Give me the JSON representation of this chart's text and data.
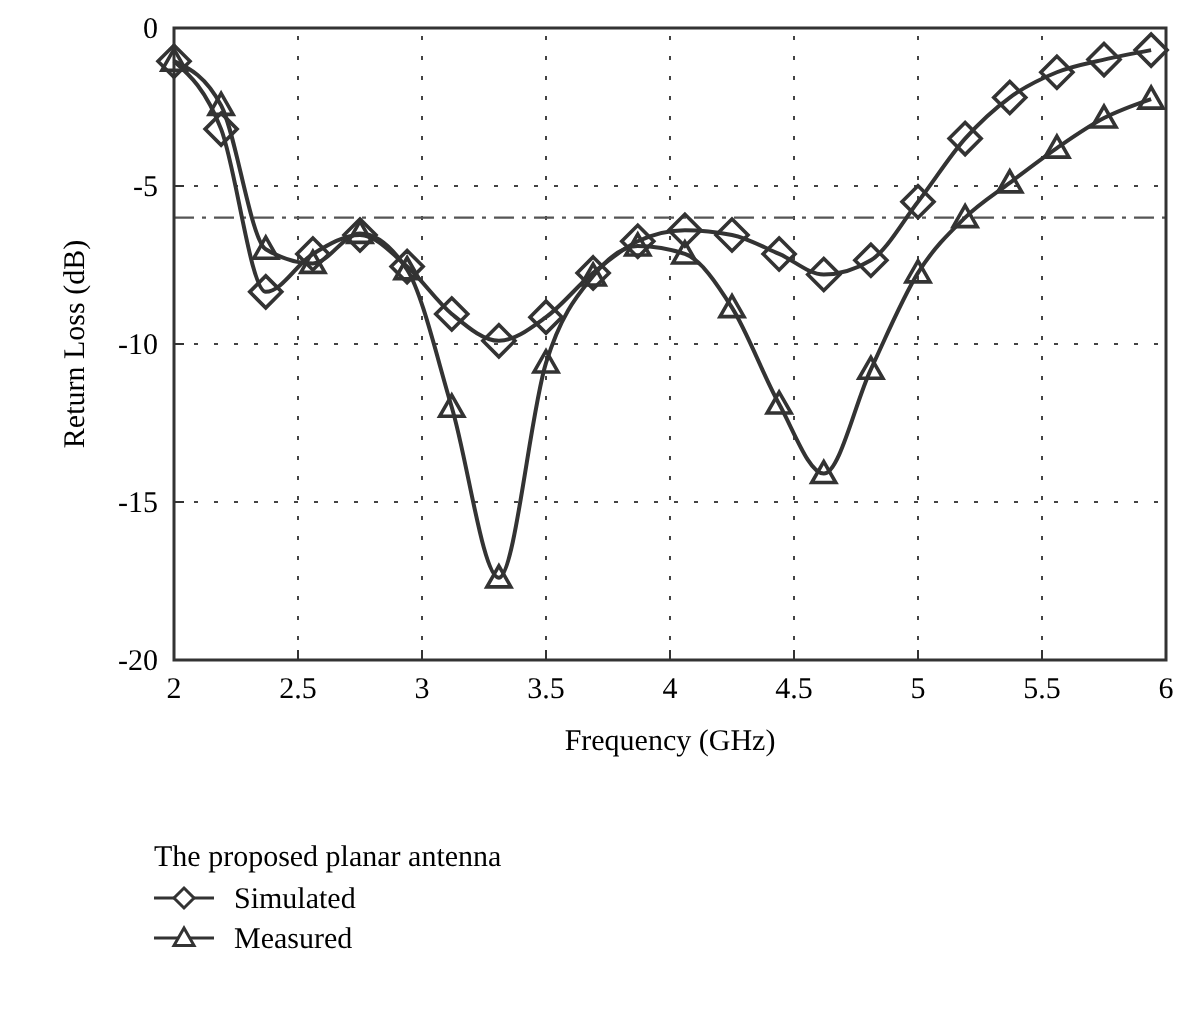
{
  "chart_data": {
    "type": "line",
    "xlabel": "Frequency (GHz)",
    "ylabel": "Return Loss (dB)",
    "legend_title": "The proposed planar antenna",
    "legend": "bottom left",
    "grid": true,
    "line_style": "solid",
    "xlim": [
      2,
      6
    ],
    "xticks": [
      2,
      2.5,
      3,
      3.5,
      4,
      4.5,
      5,
      5.5,
      6
    ],
    "ylim": [
      -20,
      0
    ],
    "yticks": [
      -20,
      -15,
      -10,
      -5,
      0
    ],
    "x": [
      2,
      2.19,
      2.37,
      2.56,
      2.75,
      2.94,
      3.12,
      3.31,
      3.5,
      3.69,
      3.87,
      4.06,
      4.25,
      4.44,
      4.62,
      4.81,
      5,
      5.19,
      5.37,
      5.56,
      5.75,
      5.94
    ],
    "series": [
      {
        "name": "Simulated",
        "color": "#333333",
        "marker": "diamond",
        "values": [
          -1.05,
          -3.2,
          -8.35,
          -7.15,
          -6.55,
          -7.55,
          -9.05,
          -9.9,
          -9.15,
          -7.75,
          -6.75,
          -6.4,
          -6.55,
          -7.15,
          -7.8,
          -7.35,
          -5.5,
          -3.5,
          -2.2,
          -1.4,
          -1.0,
          -0.7
        ]
      },
      {
        "name": "Measured",
        "color": "#333333",
        "marker": "triangle",
        "values": [
          -1.05,
          -2.45,
          -7.0,
          -7.45,
          -6.5,
          -7.65,
          -12.0,
          -17.4,
          -10.6,
          -7.85,
          -6.9,
          -7.15,
          -8.85,
          -11.9,
          -14.1,
          -10.8,
          -7.75,
          -6.0,
          -4.9,
          -3.8,
          -2.85,
          -2.25
        ]
      }
    ],
    "ref_lines": [
      {
        "axis": "y",
        "value": -6,
        "color": "#555555",
        "line_style": "dashdot"
      }
    ]
  }
}
